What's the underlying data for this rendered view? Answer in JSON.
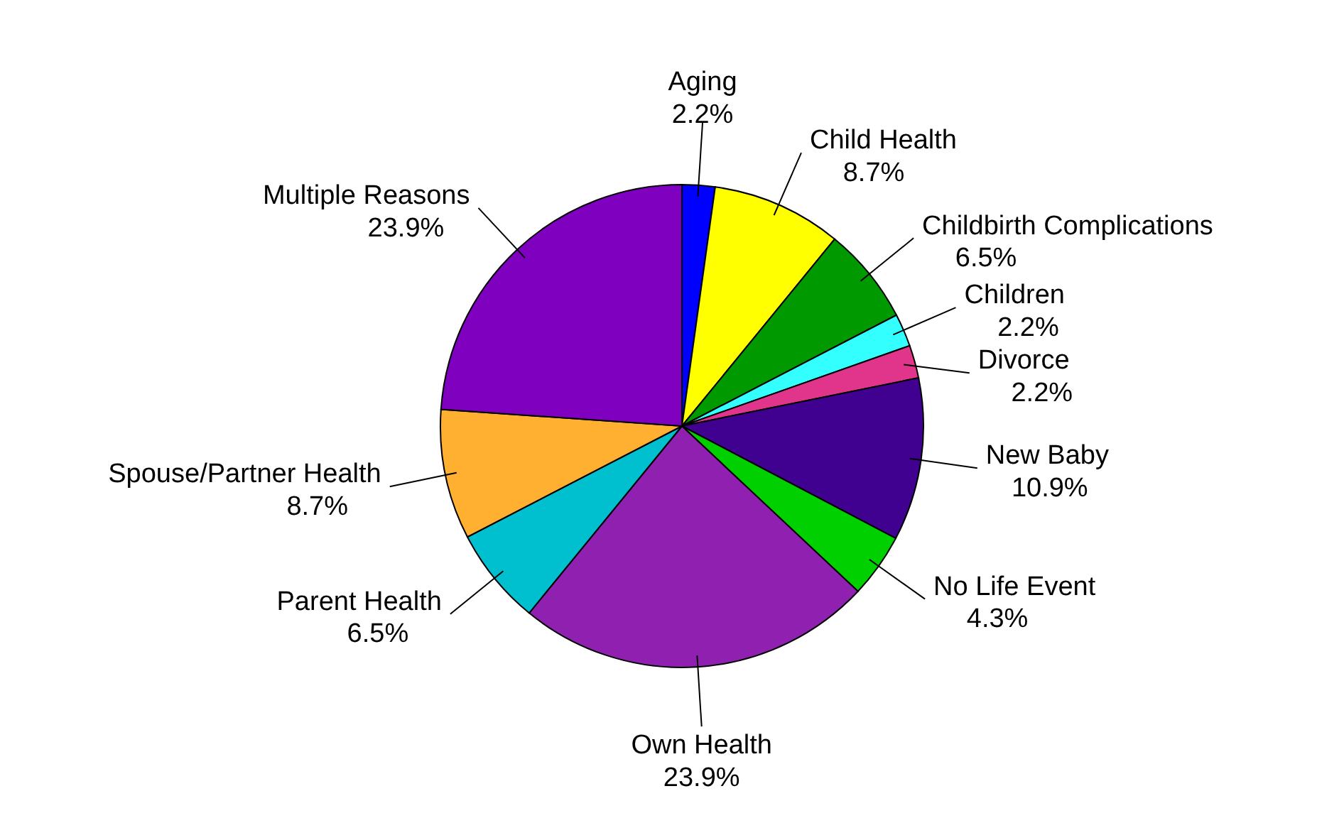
{
  "chart_data": {
    "type": "pie",
    "categories": [
      "Aging",
      "Child Health",
      "Childbirth Complications",
      "Children",
      "Divorce",
      "New Baby",
      "No Life Event",
      "Own Health",
      "Parent Health",
      "Spouse/Partner Health",
      "Multiple Reasons"
    ],
    "values": [
      2.2,
      8.7,
      6.5,
      2.2,
      2.2,
      10.9,
      4.3,
      23.9,
      6.5,
      8.7,
      23.9
    ],
    "value_labels": [
      "2.2%",
      "8.7%",
      "6.5%",
      "2.2%",
      "2.2%",
      "10.9%",
      "4.3%",
      "23.9%",
      "6.5%",
      "8.7%",
      "23.9%"
    ],
    "colors": [
      "#0000ff",
      "#ffff00",
      "#009900",
      "#33ffff",
      "#e0358a",
      "#400090",
      "#00d000",
      "#9020b0",
      "#00c0d0",
      "#ffb030",
      "#8000c0"
    ]
  }
}
